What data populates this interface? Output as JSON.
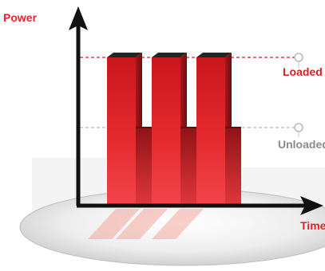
{
  "axes": {
    "y_label": "Power",
    "x_label": "Time"
  },
  "levels": {
    "loaded_label": "Loaded",
    "unloaded_label": "Unloaded"
  },
  "colors": {
    "bar_front": "#e0262b",
    "bar_side": "#9a1418",
    "bar_top": "#1b2a22",
    "loaded_line": "#d4474b",
    "unloaded_line": "#b7b7b7",
    "axis": "#111111",
    "power_label": "#e8232a",
    "loaded_label": "#d81f26",
    "unloaded_label": "#8a8a8a",
    "time_label": "#e0262b"
  },
  "bar_profile": [
    "Loaded",
    "Unloaded",
    "Loaded",
    "Unloaded",
    "Loaded",
    "Unloaded"
  ]
}
